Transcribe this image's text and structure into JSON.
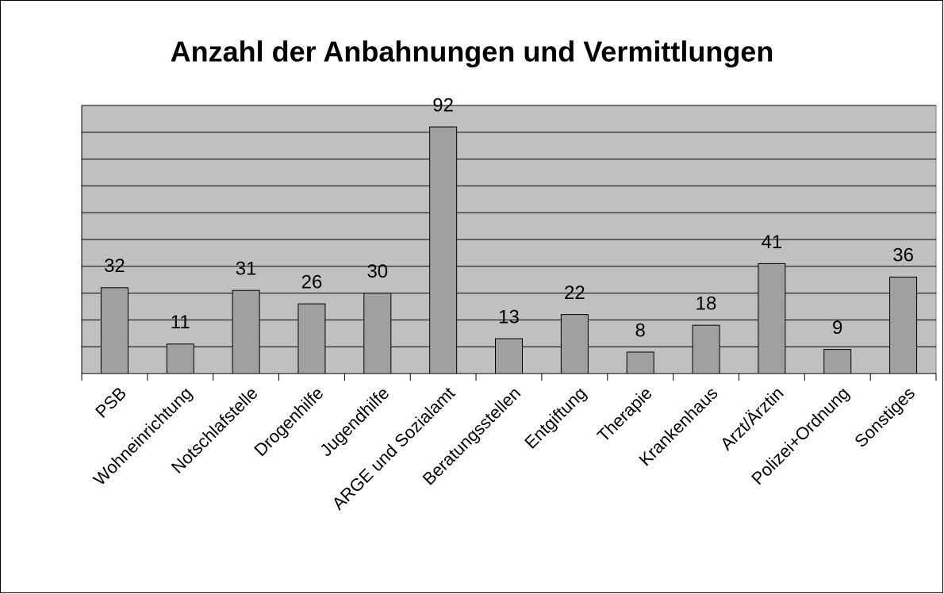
{
  "chart_data": {
    "type": "bar",
    "title": "Anzahl der Anbahnungen und Vermittlungen",
    "categories": [
      "PSB",
      "Wohneinrichtung",
      "Notschlafstelle",
      "Drogenhilfe",
      "Jugendhilfe",
      "ARGE und Sozialamt",
      "Beratungsstellen",
      "Entgiftung",
      "Therapie",
      "Krankenhaus",
      "Arzt/Ärztin",
      "Polizei+Ordnung",
      "Sonstiges"
    ],
    "values": [
      32,
      11,
      31,
      26,
      30,
      92,
      13,
      22,
      8,
      18,
      41,
      9,
      36
    ],
    "color": "#a0a0a0",
    "background": "#c0c0c0",
    "ylim": [
      0,
      100
    ],
    "yticks": [
      0,
      10,
      20,
      30,
      40,
      50,
      60,
      70,
      80,
      90,
      100
    ],
    "grid": true
  }
}
